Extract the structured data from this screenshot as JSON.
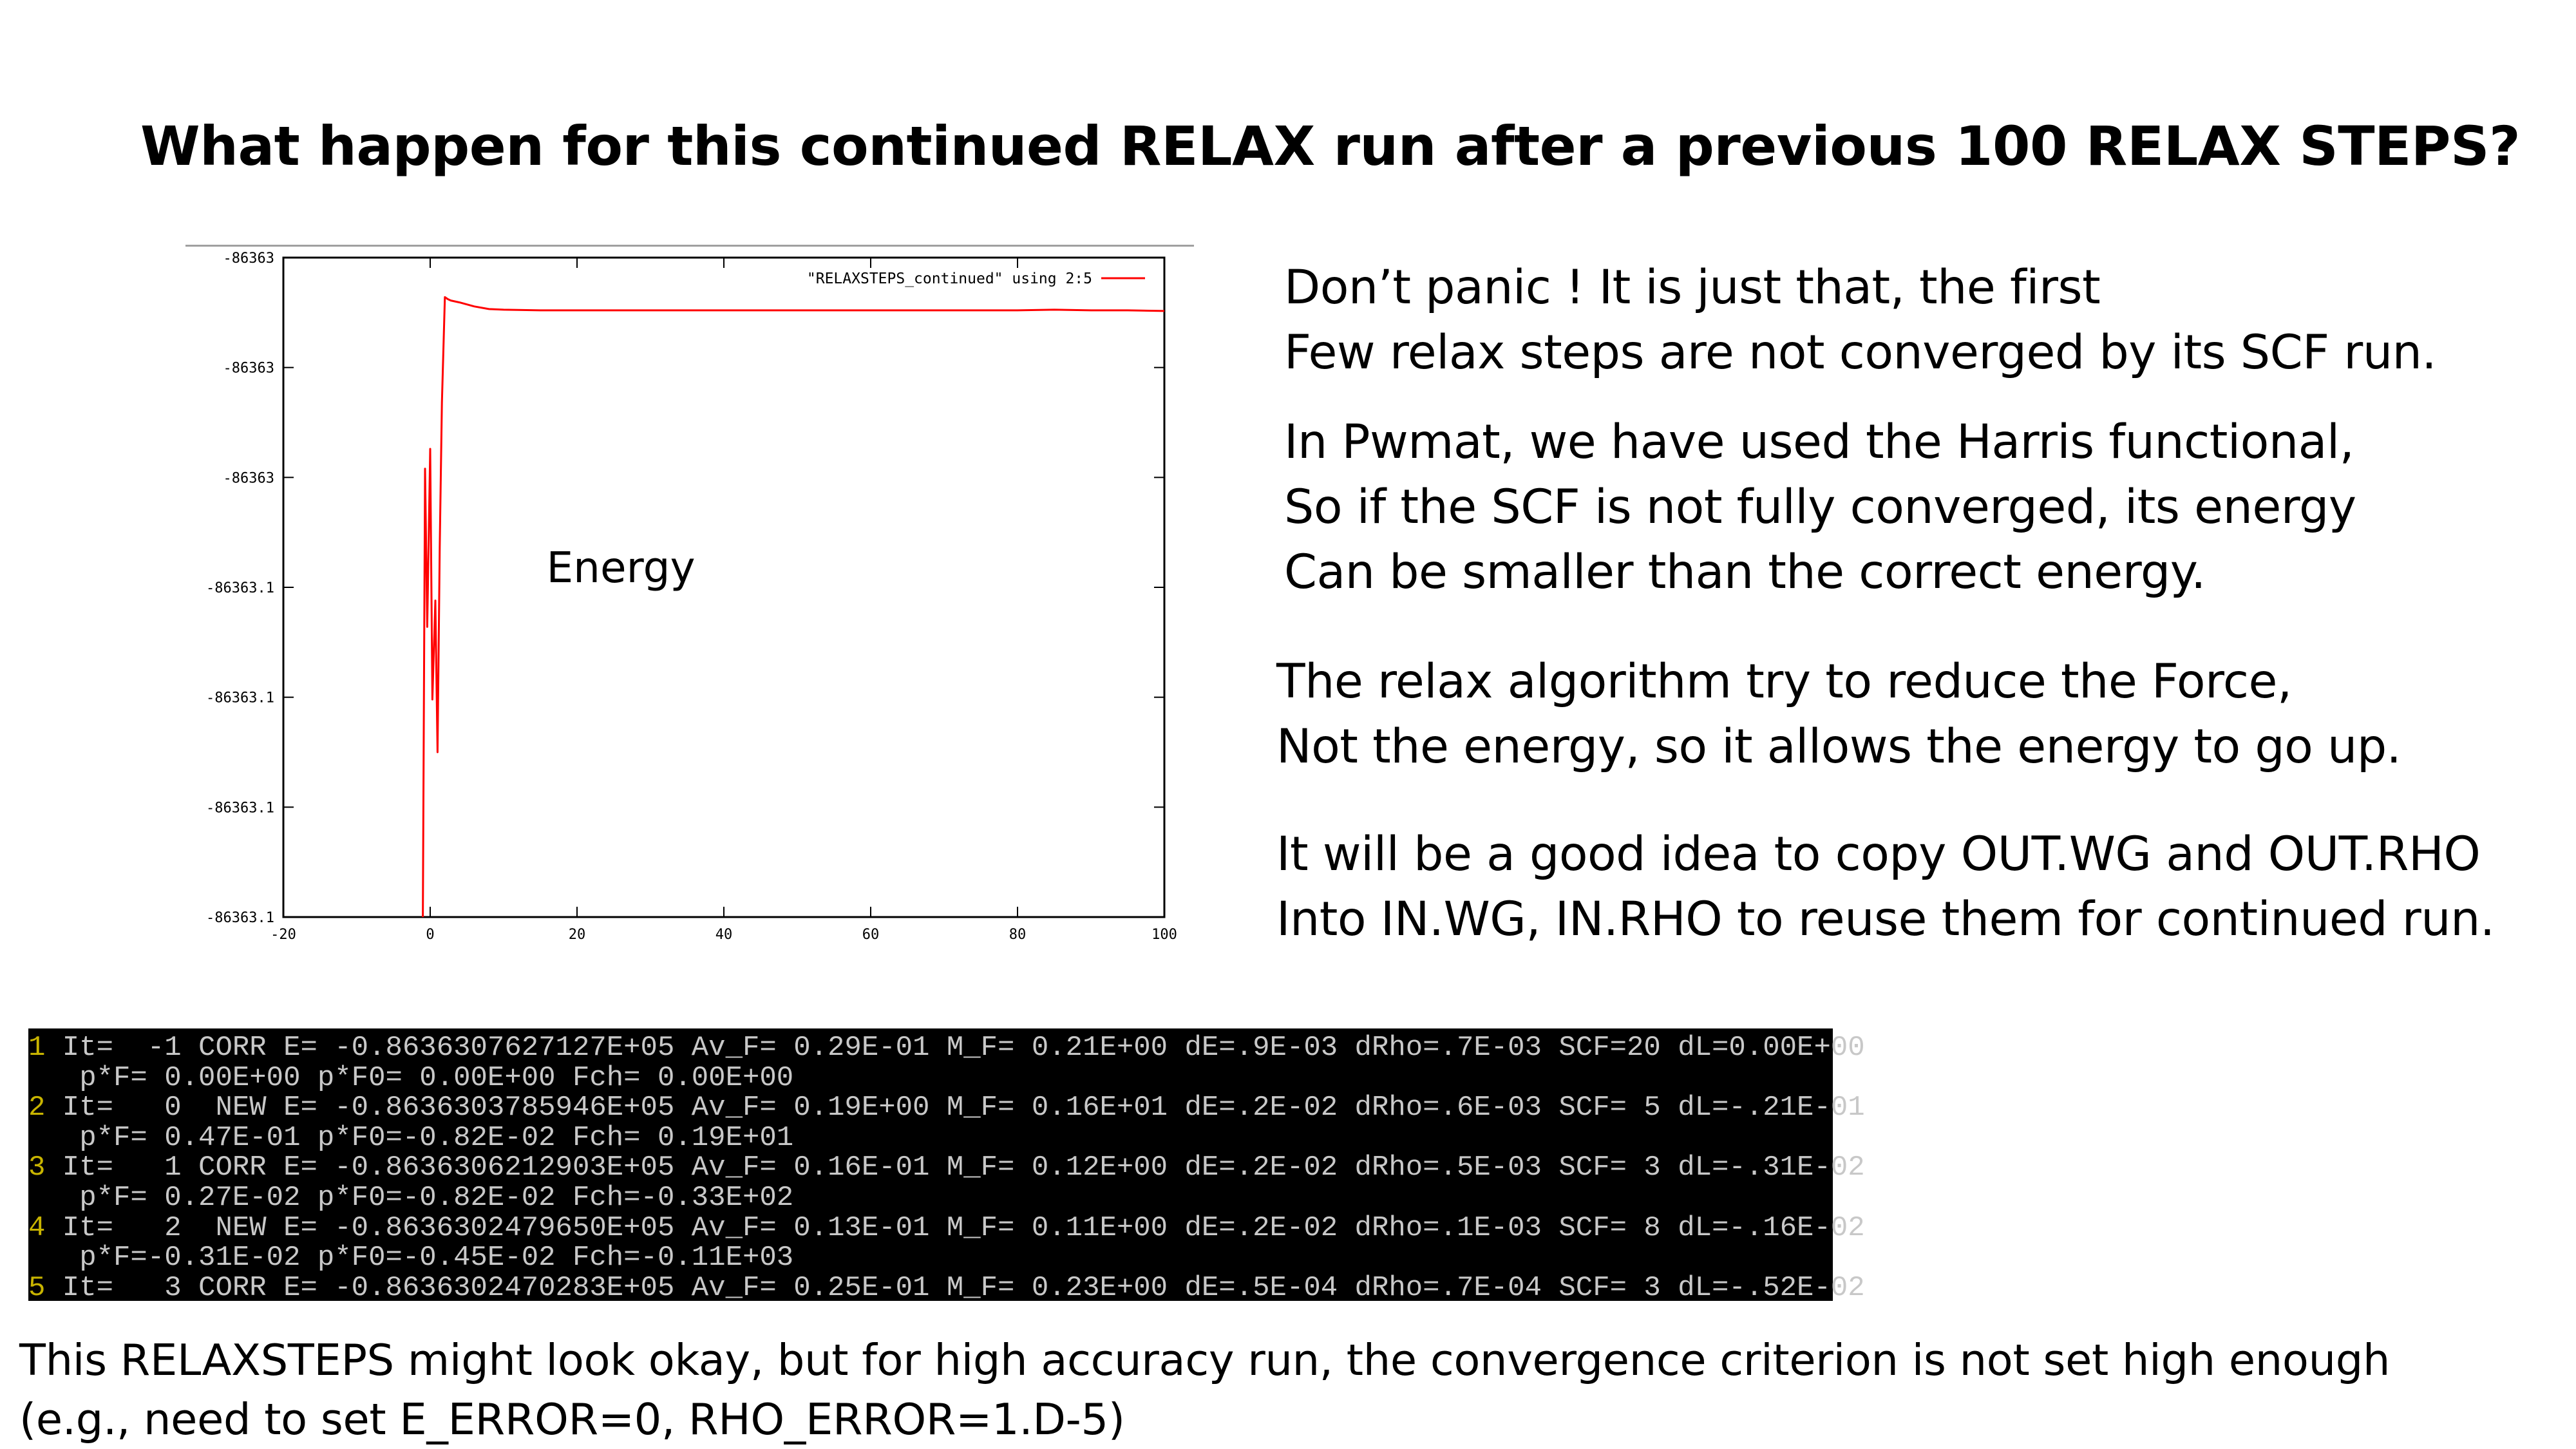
{
  "title": "What happen for this continued RELAX run after a previous 100 RELAX STEPS?",
  "chart_data": {
    "type": "line",
    "annotation": "Energy",
    "legend_label": "\"RELAXSTEPS_continued\" using 2:5",
    "legend_position": "top-right",
    "line_color": "#ff0000",
    "xlim": [
      -20,
      100
    ],
    "x_ticks": [
      "-20",
      "0",
      "20",
      "40",
      "60",
      "80",
      "100"
    ],
    "y_ticks": [
      "-86363",
      "-86363",
      "-86363",
      "-86363.1",
      "-86363.1",
      "-86363.1",
      "-86363.1"
    ],
    "grid": false,
    "series": [
      {
        "x": [
          -1,
          -0.7,
          -0.4,
          0,
          0.3,
          0.7,
          1,
          1.3,
          1.6,
          2,
          2.4,
          2.8,
          4,
          5,
          6,
          8,
          10,
          15,
          20,
          30,
          40,
          50,
          60,
          70,
          80,
          85,
          90,
          95,
          100
        ],
        "y": [
          0.0,
          0.68,
          0.44,
          0.71,
          0.33,
          0.48,
          0.25,
          0.56,
          0.78,
          0.94,
          0.937,
          0.935,
          0.932,
          0.929,
          0.926,
          0.922,
          0.921,
          0.92,
          0.92,
          0.92,
          0.92,
          0.92,
          0.92,
          0.92,
          0.92,
          0.921,
          0.92,
          0.92,
          0.919
        ]
      }
    ]
  },
  "paragraphs": [
    [
      "Don’t panic !   It is just that, the first",
      "Few relax steps are not converged by its SCF run."
    ],
    [
      "In Pwmat, we have used the Harris functional,",
      "So if the SCF is not fully converged, its energy",
      "Can be smaller than the correct energy."
    ],
    [
      "The relax algorithm try to reduce the Force,",
      "Not the energy, so it allows the energy to go up."
    ],
    [
      "It will be a good idea to copy OUT.WG and OUT.RHO",
      "Into IN.WG, IN.RHO to reuse them for continued run."
    ]
  ],
  "terminal": {
    "lines": [
      {
        "num": "1",
        "text": " It=  -1 CORR E= -0.8636307627127E+05 Av_F= 0.29E-01 M_F= 0.21E+00 dE=.9E-03 dRho=.7E-03 SCF=20 dL=0.00E+00"
      },
      {
        "num": "",
        "text": " p*F= 0.00E+00 p*F0= 0.00E+00 Fch= 0.00E+00"
      },
      {
        "num": "2",
        "text": " It=   0  NEW E= -0.8636303785946E+05 Av_F= 0.19E+00 M_F= 0.16E+01 dE=.2E-02 dRho=.6E-03 SCF= 5 dL=-.21E-01"
      },
      {
        "num": "",
        "text": " p*F= 0.47E-01 p*F0=-0.82E-02 Fch= 0.19E+01"
      },
      {
        "num": "3",
        "text": " It=   1 CORR E= -0.8636306212903E+05 Av_F= 0.16E-01 M_F= 0.12E+00 dE=.2E-02 dRho=.5E-03 SCF= 3 dL=-.31E-02"
      },
      {
        "num": "",
        "text": " p*F= 0.27E-02 p*F0=-0.82E-02 Fch=-0.33E+02"
      },
      {
        "num": "4",
        "text": " It=   2  NEW E= -0.8636302479650E+05 Av_F= 0.13E-01 M_F= 0.11E+00 dE=.2E-02 dRho=.1E-03 SCF= 8 dL=-.16E-02"
      },
      {
        "num": "",
        "text": " p*F=-0.31E-02 p*F0=-0.45E-02 Fch=-0.11E+03"
      },
      {
        "num": "5",
        "text": " It=   3 CORR E= -0.8636302470283E+05 Av_F= 0.25E-01 M_F= 0.23E+00 dE=.5E-04 dRho=.7E-04 SCF= 3 dL=-.52E-02"
      }
    ]
  },
  "footer": [
    "This RELAXSTEPS might look okay, but for high accuracy run, the convergence criterion is not set high enough",
    "(e.g., need to set E_ERROR=0, RHO_ERROR=1.D-5)"
  ]
}
